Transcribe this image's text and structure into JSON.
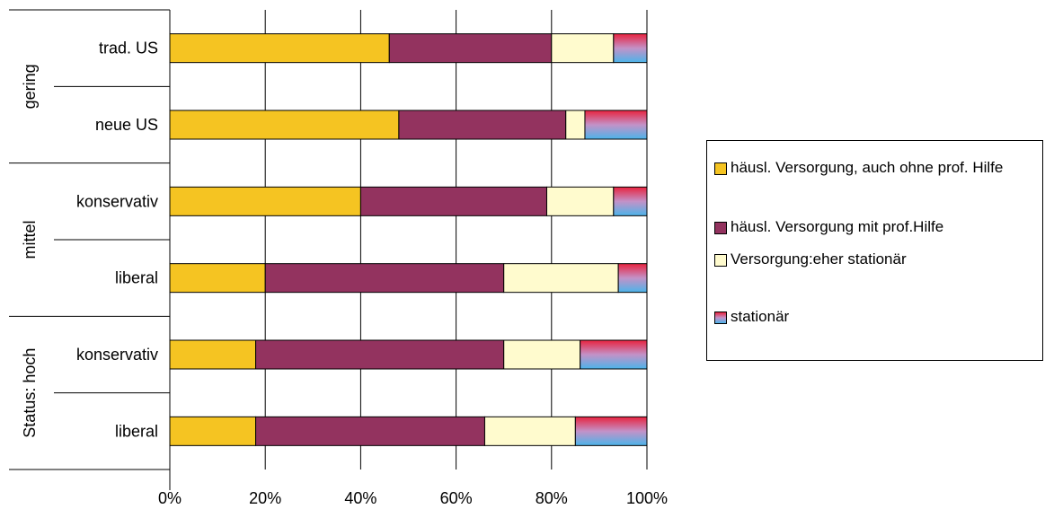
{
  "chart_data": {
    "type": "bar",
    "orientation": "horizontal",
    "stacked": "percent",
    "groups": [
      {
        "label": "gering",
        "categories": [
          "trad. US",
          "neue US"
        ]
      },
      {
        "label": "mittel",
        "categories": [
          "konservativ",
          "liberal"
        ]
      },
      {
        "label": "Status: hoch",
        "categories": [
          "konservativ",
          "liberal"
        ]
      }
    ],
    "categories": [
      "trad. US",
      "neue US",
      "konservativ",
      "liberal",
      "konservativ",
      "liberal"
    ],
    "series": [
      {
        "name": "häusl. Versorgung, auch ohne prof. Hilfe",
        "color": "#F5C422",
        "values": [
          46,
          48,
          40,
          20,
          18,
          18
        ]
      },
      {
        "name": "häusl. Versorgung mit prof.Hilfe",
        "color": "#93335F",
        "values": [
          34,
          35,
          39,
          50,
          52,
          48
        ]
      },
      {
        "name": "Versorgung:eher stationär",
        "color": "#FFFBCE",
        "values": [
          13,
          4,
          14,
          24,
          16,
          19
        ]
      },
      {
        "name": "stationär",
        "color": "gradient-red-blue",
        "values": [
          7,
          13,
          7,
          6,
          14,
          15
        ]
      }
    ],
    "xticks": [
      "0%",
      "20%",
      "40%",
      "60%",
      "80%",
      "100%"
    ],
    "xlim": [
      0,
      100
    ],
    "grid": "vertical",
    "legend_position": "right"
  }
}
